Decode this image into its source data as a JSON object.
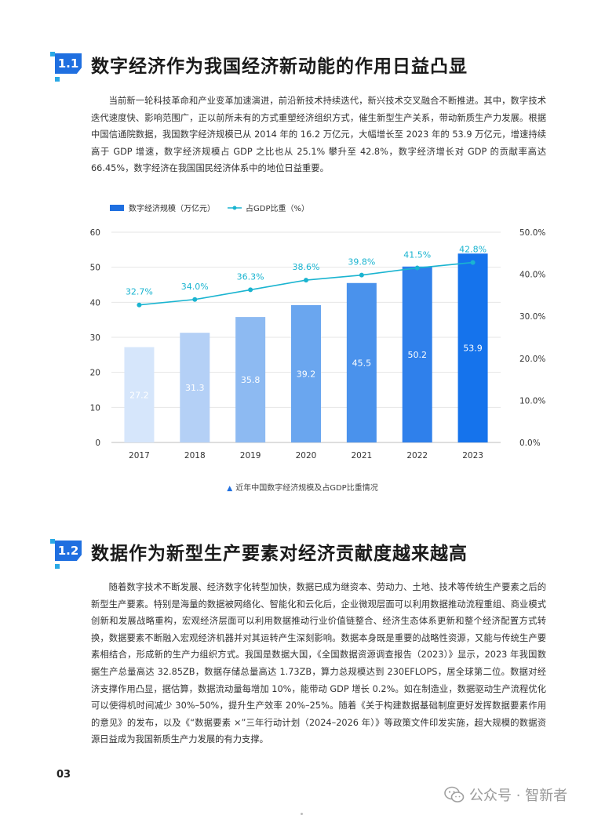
{
  "section1": {
    "number": "1.1",
    "title": "数字经济作为我国经济新动能的作用日益凸显",
    "paragraph": "当前新一轮科技革命和产业变革加速演进，前沿新技术持续迭代，新兴技术交叉融合不断推进。其中，数字技术迭代速度快、影响范围广，正以前所未有的方式重塑经济组织方式，催生新型生产关系，带动新质生产力发展。根据中国信通院数据，我国数字经济规模已从 2014 年的 16.2 万亿元，大幅增长至 2023 年的 53.9 万亿元，增速持续高于 GDP 增速，数字经济规模占 GDP 之比也从 25.1% 攀升至 42.8%，数字经济增长对 GDP 的贡献率高达 66.45%，数字经济在我国国民经济体系中的地位日益重要。"
  },
  "chart_data": {
    "type": "bar",
    "categories": [
      "2017",
      "2018",
      "2019",
      "2020",
      "2021",
      "2022",
      "2023"
    ],
    "series": [
      {
        "name": "数字经济规模（万亿元）",
        "type": "bar",
        "values": [
          27.2,
          31.3,
          35.8,
          39.2,
          45.5,
          50.2,
          53.9
        ],
        "colors": [
          "#d6e6fb",
          "#b4d0f6",
          "#8dbaf2",
          "#6aa6ef",
          "#4a92ec",
          "#2f80eb",
          "#1573ec"
        ]
      },
      {
        "name": "占GDP比重（%）",
        "type": "line",
        "axis": "right",
        "values": [
          32.7,
          34.0,
          36.3,
          38.6,
          39.8,
          41.5,
          42.8
        ],
        "labels": [
          "32.7%",
          "34.0%",
          "36.3%",
          "38.6%",
          "39.8%",
          "41.5%",
          "42.8%"
        ],
        "color": "#1ab4d0"
      }
    ],
    "ylim": [
      0,
      60
    ],
    "yticks": [
      "0",
      "10",
      "20",
      "30",
      "40",
      "50",
      "60"
    ],
    "y2lim": [
      0,
      50
    ],
    "y2ticks": [
      "0.0%",
      "10.0%",
      "20.0%",
      "30.0%",
      "40.0%",
      "50.0%"
    ],
    "grid": true,
    "legend": "top-left",
    "label_color_dark": "#ffffff",
    "label_color_light": "#ffffff"
  },
  "caption": "近年中国数字经济规模及占GDP比重情况",
  "section2": {
    "number": "1.2",
    "title": "数据作为新型生产要素对经济贡献度越来越高",
    "paragraph": "随着数字技术不断发展、经济数字化转型加快，数据已成为继资本、劳动力、土地、技术等传统生产要素之后的新型生产要素。特别是海量的数据被网络化、智能化和云化后，企业微观层面可以利用数据推动流程重组、商业模式创新和发展战略重构，宏观经济层面可以利用数据推动行业价值链整合、经济生态体系更新和整个经济配置方式转换，数据要素不断融入宏观经济机器并对其运转产生深刻影响。数据本身既是重要的战略性资源，又能与传统生产要素相结合，形成新的生产力组织方式。我国是数据大国，《全国数据资源调查报告（2023）》显示，2023 年我国数据生产总量高达 32.85ZB，数据存储总量高达 1.73ZB，算力总规模达到 230EFLOPS，居全球第二位。数据对经济支撑作用凸显，据估算，数据流动量每增加 10%，能带动 GDP 增长 0.2%。如在制造业，数据驱动生产流程优化可以使得机时间减少 30%–50%，提升生产效率 20%–25%。随着《关于构建数据基础制度更好发挥数据要素作用的意见》的发布，以及《“数据要素 ×”三年行动计划（2024–2026 年）》等政策文件印发实施，超大规模的数据资源日益成为我国新质生产力发展的有力支撑。"
  },
  "footer": {
    "page_number": "03",
    "watermark": "公众号 · 智新者"
  }
}
